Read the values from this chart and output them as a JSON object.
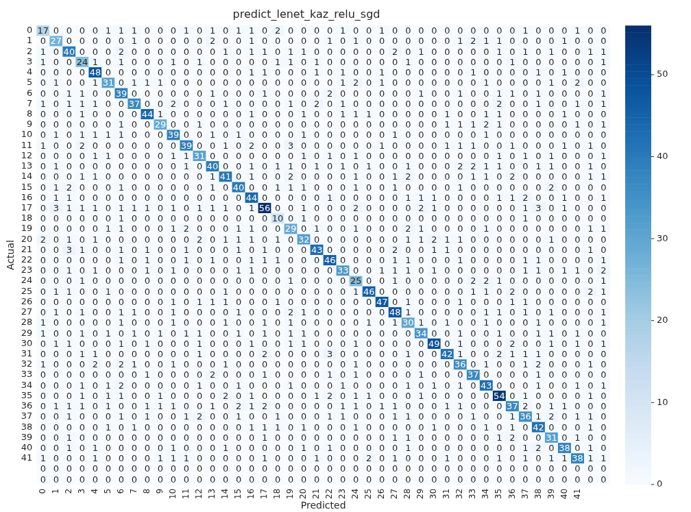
{
  "chart_data": {
    "type": "heatmap",
    "title": "predict_lenet_kaz_relu_sgd",
    "xlabel": "Predicted",
    "ylabel": "Actual",
    "categories": [
      "0",
      "1",
      "2",
      "3",
      "4",
      "5",
      "6",
      "7",
      "8",
      "9",
      "10",
      "11",
      "12",
      "13",
      "14",
      "15",
      "16",
      "17",
      "18",
      "19",
      "20",
      "21",
      "22",
      "23",
      "24",
      "25",
      "26",
      "27",
      "28",
      "29",
      "30",
      "31",
      "32",
      "33",
      "34",
      "35",
      "36",
      "37",
      "38",
      "39",
      "40",
      "41",
      null,
      null
    ],
    "y_categories": [
      "0",
      "1",
      "2",
      "3",
      "4",
      "5",
      "6",
      "7",
      "8",
      "9",
      "10",
      "11",
      "12",
      "13",
      "14",
      "15",
      "16",
      "17",
      "18",
      "19",
      "20",
      "21",
      "22",
      "23",
      "24",
      "25",
      "26",
      "27",
      "28",
      "29",
      "30",
      "31",
      "32",
      "33",
      "34",
      "35",
      "36",
      "37",
      "38",
      "39",
      "40",
      "41",
      null,
      null
    ],
    "cells": [
      [
        17,
        0,
        0,
        0,
        0,
        1,
        1,
        1,
        0,
        0,
        0,
        1,
        0,
        1,
        0,
        1,
        1,
        0,
        2,
        0,
        0,
        0,
        0,
        1,
        0,
        0,
        1,
        0,
        0,
        0,
        0,
        0,
        0,
        0,
        0,
        0,
        0,
        1,
        0,
        0,
        0,
        1,
        0,
        0
      ],
      [
        0,
        27,
        0,
        0,
        0,
        0,
        0,
        1,
        0,
        0,
        0,
        0,
        0,
        2,
        0,
        0,
        1,
        0,
        0,
        0,
        0,
        0,
        1,
        0,
        1,
        0,
        0,
        0,
        0,
        0,
        0,
        0,
        1,
        2,
        1,
        1,
        0,
        0,
        0,
        0,
        1,
        0,
        0,
        0
      ],
      [
        1,
        0,
        40,
        0,
        0,
        0,
        2,
        0,
        0,
        0,
        0,
        0,
        0,
        0,
        1,
        0,
        1,
        1,
        0,
        1,
        1,
        0,
        0,
        0,
        0,
        0,
        0,
        2,
        0,
        1,
        0,
        0,
        0,
        0,
        0,
        1,
        0,
        1,
        0,
        1,
        0,
        0,
        1,
        1
      ],
      [
        1,
        0,
        0,
        24,
        1,
        0,
        1,
        0,
        0,
        0,
        1,
        0,
        1,
        0,
        0,
        0,
        0,
        0,
        1,
        1,
        0,
        1,
        0,
        0,
        0,
        0,
        0,
        0,
        1,
        0,
        0,
        0,
        0,
        0,
        0,
        0,
        1,
        0,
        0,
        0,
        0,
        0,
        0,
        1
      ],
      [
        0,
        0,
        0,
        0,
        48,
        0,
        0,
        0,
        0,
        0,
        0,
        0,
        0,
        0,
        0,
        0,
        1,
        1,
        0,
        0,
        0,
        1,
        0,
        1,
        0,
        0,
        1,
        0,
        0,
        0,
        0,
        0,
        0,
        1,
        0,
        0,
        0,
        0,
        1,
        0,
        1,
        0,
        0,
        0
      ],
      [
        0,
        1,
        0,
        0,
        1,
        31,
        0,
        1,
        1,
        1,
        0,
        0,
        0,
        0,
        0,
        0,
        0,
        0,
        0,
        0,
        0,
        0,
        0,
        1,
        2,
        0,
        1,
        0,
        0,
        0,
        0,
        0,
        0,
        0,
        1,
        0,
        0,
        0,
        0,
        1,
        0,
        2,
        0,
        0
      ],
      [
        0,
        0,
        1,
        1,
        0,
        0,
        39,
        0,
        0,
        0,
        0,
        0,
        0,
        1,
        0,
        0,
        0,
        1,
        0,
        0,
        0,
        0,
        2,
        0,
        0,
        0,
        0,
        0,
        0,
        1,
        0,
        0,
        1,
        0,
        0,
        1,
        1,
        0,
        1,
        0,
        0,
        0,
        0,
        1
      ],
      [
        1,
        0,
        1,
        1,
        1,
        0,
        0,
        37,
        0,
        0,
        2,
        0,
        0,
        0,
        1,
        0,
        0,
        0,
        0,
        1,
        0,
        2,
        0,
        1,
        0,
        0,
        0,
        0,
        0,
        0,
        0,
        0,
        0,
        0,
        0,
        2,
        0,
        0,
        1,
        0,
        0,
        1,
        0,
        1
      ],
      [
        0,
        0,
        0,
        1,
        0,
        0,
        0,
        0,
        44,
        1,
        0,
        0,
        0,
        0,
        0,
        0,
        1,
        0,
        0,
        0,
        1,
        0,
        0,
        1,
        1,
        1,
        0,
        0,
        0,
        0,
        0,
        1,
        0,
        0,
        1,
        1,
        0,
        0,
        0,
        0,
        1,
        0,
        0,
        0
      ],
      [
        0,
        0,
        0,
        0,
        0,
        0,
        1,
        0,
        0,
        29,
        0,
        0,
        1,
        0,
        0,
        0,
        0,
        0,
        0,
        0,
        0,
        0,
        0,
        0,
        0,
        0,
        0,
        0,
        0,
        0,
        0,
        1,
        1,
        1,
        2,
        1,
        0,
        0,
        0,
        0,
        0,
        1,
        0,
        1
      ],
      [
        0,
        1,
        0,
        1,
        1,
        1,
        1,
        0,
        0,
        0,
        39,
        0,
        0,
        1,
        0,
        1,
        0,
        0,
        0,
        0,
        1,
        0,
        0,
        0,
        0,
        0,
        0,
        1,
        0,
        0,
        0,
        0,
        0,
        0,
        1,
        0,
        0,
        0,
        0,
        0,
        0,
        0,
        0,
        0
      ],
      [
        1,
        0,
        0,
        2,
        0,
        0,
        0,
        0,
        0,
        0,
        0,
        39,
        0,
        0,
        1,
        0,
        2,
        0,
        0,
        3,
        0,
        0,
        0,
        0,
        0,
        0,
        1,
        0,
        0,
        0,
        0,
        1,
        1,
        1,
        0,
        0,
        1,
        0,
        0,
        0,
        1,
        0,
        1,
        0
      ],
      [
        0,
        0,
        0,
        0,
        1,
        1,
        0,
        0,
        0,
        0,
        1,
        1,
        31,
        0,
        0,
        0,
        0,
        0,
        0,
        0,
        1,
        0,
        1,
        0,
        1,
        0,
        0,
        0,
        0,
        0,
        0,
        0,
        0,
        0,
        0,
        1,
        0,
        1,
        0,
        1,
        0,
        0,
        0,
        1
      ],
      [
        0,
        1,
        0,
        0,
        0,
        0,
        0,
        0,
        0,
        0,
        0,
        1,
        0,
        40,
        0,
        0,
        1,
        0,
        1,
        1,
        0,
        1,
        0,
        1,
        0,
        1,
        0,
        0,
        1,
        0,
        0,
        0,
        2,
        2,
        1,
        1,
        0,
        0,
        1,
        1,
        0,
        0,
        1,
        0
      ],
      [
        0,
        0,
        0,
        1,
        1,
        0,
        0,
        0,
        0,
        0,
        0,
        0,
        0,
        1,
        41,
        0,
        1,
        0,
        0,
        2,
        0,
        0,
        0,
        0,
        1,
        0,
        0,
        1,
        2,
        0,
        0,
        0,
        0,
        1,
        1,
        0,
        2,
        0,
        0,
        0,
        0,
        0,
        1,
        1
      ],
      [
        0,
        1,
        2,
        0,
        0,
        0,
        1,
        0,
        0,
        0,
        0,
        0,
        0,
        1,
        0,
        40,
        0,
        0,
        1,
        1,
        1,
        0,
        0,
        0,
        1,
        0,
        0,
        1,
        0,
        0,
        0,
        0,
        1,
        0,
        0,
        0,
        0,
        0,
        0,
        2,
        0,
        0,
        0,
        0
      ],
      [
        0,
        1,
        1,
        0,
        0,
        0,
        0,
        0,
        0,
        0,
        0,
        0,
        0,
        0,
        0,
        0,
        44,
        0,
        0,
        0,
        0,
        0,
        1,
        0,
        0,
        0,
        0,
        0,
        1,
        1,
        1,
        0,
        0,
        0,
        0,
        1,
        1,
        2,
        0,
        0,
        1,
        0,
        0,
        1
      ],
      [
        0,
        3,
        1,
        1,
        1,
        0,
        1,
        1,
        1,
        0,
        1,
        0,
        1,
        1,
        1,
        0,
        1,
        56,
        0,
        0,
        1,
        0,
        0,
        0,
        2,
        0,
        0,
        0,
        0,
        2,
        1,
        0,
        0,
        0,
        0,
        0,
        0,
        1,
        3,
        0,
        1,
        0,
        0,
        0
      ],
      [
        0,
        0,
        0,
        0,
        0,
        0,
        1,
        0,
        0,
        0,
        0,
        0,
        0,
        0,
        0,
        0,
        0,
        0,
        10,
        0,
        1,
        0,
        0,
        0,
        0,
        0,
        0,
        0,
        0,
        0,
        0,
        0,
        0,
        0,
        0,
        0,
        0,
        1,
        0,
        0,
        0,
        0,
        0,
        0
      ],
      [
        0,
        0,
        0,
        0,
        0,
        1,
        1,
        0,
        0,
        0,
        1,
        2,
        0,
        0,
        0,
        1,
        1,
        0,
        0,
        29,
        0,
        1,
        0,
        0,
        1,
        0,
        0,
        0,
        2,
        1,
        0,
        0,
        0,
        0,
        1,
        0,
        0,
        0,
        0,
        0,
        0,
        0,
        1,
        1
      ],
      [
        2,
        0,
        1,
        0,
        1,
        0,
        0,
        0,
        0,
        0,
        0,
        0,
        2,
        0,
        1,
        1,
        1,
        0,
        1,
        0,
        32,
        0,
        0,
        0,
        0,
        0,
        0,
        0,
        1,
        1,
        2,
        1,
        1,
        0,
        0,
        0,
        0,
        0,
        0,
        1,
        0,
        0,
        0,
        0
      ],
      [
        0,
        0,
        3,
        1,
        0,
        0,
        1,
        0,
        1,
        0,
        0,
        1,
        0,
        0,
        0,
        1,
        0,
        1,
        0,
        0,
        0,
        43,
        0,
        0,
        0,
        0,
        0,
        2,
        0,
        0,
        1,
        1,
        0,
        0,
        0,
        0,
        0,
        0,
        0,
        0,
        0,
        0,
        1,
        0
      ],
      [
        0,
        0,
        0,
        0,
        0,
        0,
        1,
        0,
        1,
        0,
        0,
        1,
        0,
        1,
        0,
        0,
        1,
        1,
        1,
        0,
        0,
        0,
        46,
        0,
        0,
        0,
        0,
        1,
        1,
        0,
        0,
        0,
        1,
        0,
        0,
        0,
        0,
        1,
        1,
        0,
        0,
        0,
        0,
        1
      ],
      [
        0,
        0,
        1,
        0,
        1,
        0,
        0,
        0,
        1,
        0,
        1,
        0,
        0,
        0,
        0,
        1,
        1,
        0,
        0,
        0,
        0,
        0,
        0,
        33,
        0,
        0,
        1,
        1,
        1,
        0,
        1,
        0,
        0,
        0,
        0,
        0,
        0,
        1,
        1,
        0,
        1,
        1,
        0,
        2
      ],
      [
        0,
        0,
        0,
        1,
        0,
        0,
        0,
        0,
        0,
        0,
        0,
        0,
        0,
        0,
        0,
        0,
        0,
        0,
        0,
        1,
        0,
        0,
        0,
        0,
        25,
        0,
        0,
        1,
        0,
        0,
        0,
        0,
        0,
        2,
        2,
        1,
        0,
        0,
        0,
        0,
        0,
        0,
        0,
        1
      ],
      [
        0,
        1,
        1,
        0,
        0,
        1,
        0,
        0,
        0,
        0,
        0,
        0,
        0,
        0,
        1,
        0,
        0,
        0,
        0,
        0,
        0,
        0,
        0,
        0,
        1,
        46,
        0,
        0,
        0,
        0,
        0,
        0,
        0,
        1,
        1,
        0,
        2,
        0,
        0,
        0,
        0,
        0,
        2,
        1
      ],
      [
        0,
        0,
        0,
        0,
        0,
        0,
        0,
        0,
        0,
        0,
        1,
        0,
        1,
        1,
        1,
        0,
        0,
        0,
        1,
        0,
        0,
        0,
        0,
        0,
        0,
        0,
        47,
        0,
        1,
        0,
        0,
        0,
        1,
        0,
        0,
        0,
        1,
        1,
        0,
        0,
        0,
        0,
        0,
        0
      ],
      [
        0,
        1,
        0,
        1,
        0,
        0,
        1,
        1,
        0,
        0,
        1,
        0,
        0,
        0,
        0,
        1,
        0,
        0,
        0,
        2,
        1,
        0,
        0,
        0,
        0,
        0,
        0,
        48,
        1,
        0,
        0,
        0,
        0,
        0,
        1,
        1,
        0,
        1,
        0,
        1,
        0,
        0,
        0,
        1
      ],
      [
        1,
        0,
        0,
        0,
        0,
        0,
        1,
        0,
        0,
        0,
        1,
        0,
        0,
        0,
        1,
        0,
        0,
        1,
        0,
        1,
        0,
        0,
        0,
        0,
        0,
        1,
        0,
        1,
        30,
        1,
        0,
        1,
        0,
        0,
        1,
        0,
        0,
        0,
        1,
        0,
        0,
        0,
        0,
        1
      ],
      [
        1,
        0,
        0,
        1,
        0,
        1,
        0,
        1,
        0,
        1,
        0,
        1,
        1,
        0,
        0,
        1,
        0,
        1,
        0,
        1,
        1,
        0,
        0,
        0,
        0,
        0,
        0,
        0,
        0,
        34,
        0,
        0,
        1,
        0,
        0,
        1,
        0,
        0,
        1,
        1,
        0,
        1,
        0,
        0
      ],
      [
        0,
        1,
        1,
        0,
        0,
        0,
        1,
        0,
        1,
        0,
        0,
        0,
        1,
        0,
        0,
        0,
        1,
        0,
        0,
        1,
        1,
        0,
        0,
        0,
        1,
        0,
        0,
        0,
        0,
        0,
        49,
        0,
        1,
        0,
        0,
        0,
        2,
        0,
        0,
        1,
        0,
        1,
        0,
        1
      ],
      [
        0,
        0,
        0,
        1,
        1,
        0,
        0,
        0,
        0,
        0,
        0,
        0,
        1,
        0,
        0,
        0,
        0,
        2,
        0,
        0,
        0,
        0,
        3,
        0,
        0,
        0,
        0,
        0,
        1,
        0,
        0,
        42,
        1,
        0,
        0,
        2,
        1,
        1,
        1,
        0,
        0,
        0,
        0,
        0
      ],
      [
        1,
        0,
        0,
        0,
        2,
        0,
        2,
        1,
        0,
        0,
        1,
        0,
        0,
        0,
        1,
        0,
        0,
        0,
        0,
        0,
        0,
        0,
        0,
        0,
        1,
        0,
        0,
        0,
        0,
        0,
        0,
        0,
        36,
        0,
        1,
        0,
        0,
        1,
        2,
        0,
        0,
        0,
        1,
        0
      ],
      [
        0,
        0,
        0,
        0,
        0,
        0,
        0,
        0,
        1,
        0,
        0,
        0,
        0,
        2,
        0,
        0,
        0,
        1,
        0,
        0,
        0,
        0,
        1,
        0,
        1,
        0,
        0,
        0,
        0,
        1,
        0,
        0,
        0,
        37,
        0,
        0,
        0,
        0,
        1,
        0,
        0,
        0,
        0,
        0
      ],
      [
        0,
        0,
        0,
        1,
        0,
        1,
        2,
        0,
        0,
        0,
        0,
        0,
        1,
        0,
        0,
        1,
        0,
        0,
        0,
        1,
        0,
        0,
        0,
        1,
        0,
        0,
        0,
        0,
        1,
        0,
        1,
        0,
        1,
        0,
        43,
        0,
        0,
        0,
        1,
        0,
        0,
        1,
        0,
        1
      ],
      [
        0,
        0,
        0,
        1,
        0,
        1,
        1,
        0,
        0,
        1,
        0,
        0,
        0,
        0,
        2,
        0,
        1,
        0,
        0,
        0,
        0,
        1,
        2,
        0,
        1,
        1,
        0,
        0,
        0,
        1,
        0,
        0,
        0,
        0,
        0,
        54,
        0,
        1,
        0,
        0,
        0,
        0,
        1,
        0
      ],
      [
        0,
        1,
        1,
        1,
        0,
        1,
        0,
        0,
        1,
        1,
        1,
        0,
        0,
        1,
        0,
        2,
        1,
        2,
        0,
        0,
        0,
        0,
        0,
        1,
        1,
        0,
        1,
        1,
        0,
        0,
        0,
        1,
        1,
        0,
        0,
        0,
        37,
        2,
        0,
        1,
        1,
        0,
        0,
        0
      ],
      [
        0,
        0,
        1,
        0,
        0,
        0,
        1,
        0,
        1,
        0,
        0,
        1,
        2,
        0,
        0,
        1,
        0,
        0,
        1,
        0,
        0,
        0,
        1,
        1,
        0,
        0,
        0,
        1,
        1,
        0,
        0,
        0,
        0,
        1,
        0,
        0,
        1,
        36,
        1,
        2,
        0,
        1,
        1,
        0
      ],
      [
        0,
        0,
        0,
        0,
        0,
        1,
        0,
        1,
        0,
        0,
        0,
        0,
        0,
        0,
        0,
        0,
        1,
        1,
        1,
        0,
        1,
        0,
        0,
        0,
        1,
        0,
        0,
        0,
        0,
        0,
        1,
        0,
        0,
        0,
        1,
        0,
        1,
        0,
        42,
        0,
        0,
        0,
        1,
        0
      ],
      [
        0,
        0,
        1,
        0,
        0,
        0,
        0,
        0,
        0,
        0,
        0,
        0,
        0,
        0,
        0,
        0,
        0,
        1,
        0,
        0,
        0,
        0,
        0,
        0,
        0,
        0,
        0,
        1,
        1,
        0,
        0,
        0,
        0,
        0,
        0,
        1,
        2,
        0,
        0,
        31,
        0,
        1,
        0,
        0
      ],
      [
        0,
        0,
        1,
        0,
        1,
        0,
        0,
        0,
        0,
        0,
        1,
        0,
        0,
        0,
        1,
        0,
        0,
        0,
        0,
        0,
        1,
        0,
        1,
        0,
        0,
        0,
        0,
        0,
        1,
        0,
        0,
        0,
        0,
        0,
        0,
        0,
        0,
        1,
        2,
        0,
        38,
        0,
        1,
        0
      ],
      [
        1,
        0,
        0,
        0,
        1,
        0,
        0,
        0,
        0,
        1,
        1,
        1,
        0,
        0,
        0,
        0,
        0,
        1,
        0,
        0,
        0,
        1,
        0,
        0,
        0,
        2,
        0,
        1,
        0,
        0,
        0,
        1,
        0,
        0,
        0,
        1,
        0,
        1,
        0,
        1,
        1,
        38,
        1,
        1
      ],
      [
        0,
        0,
        0,
        0,
        0,
        0,
        0,
        0,
        0,
        0,
        0,
        0,
        0,
        0,
        0,
        0,
        0,
        0,
        0,
        0,
        0,
        0,
        0,
        0,
        0,
        0,
        0,
        0,
        0,
        0,
        0,
        0,
        0,
        0,
        0,
        0,
        0,
        0,
        0,
        0,
        0,
        0,
        0,
        0
      ],
      [
        0,
        0,
        0,
        0,
        0,
        0,
        0,
        0,
        0,
        0,
        0,
        0,
        0,
        0,
        0,
        0,
        0,
        0,
        0,
        0,
        0,
        0,
        0,
        0,
        0,
        0,
        0,
        0,
        0,
        0,
        0,
        0,
        0,
        0,
        0,
        0,
        0,
        0,
        0,
        0,
        0,
        0,
        0,
        0
      ]
    ],
    "clim": [
      0,
      56
    ],
    "cticks": [
      0,
      10,
      20,
      30,
      40,
      50
    ],
    "data_labels": true
  }
}
